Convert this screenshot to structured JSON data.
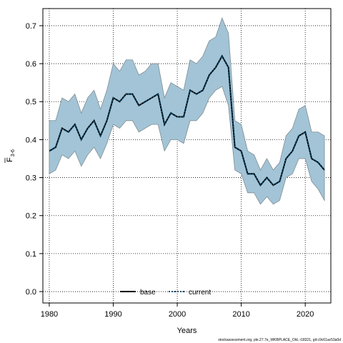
{
  "chart_data": {
    "type": "area",
    "xlabel": "Years",
    "ylabel_main": "F",
    "ylabel_sub": "3-6",
    "xlim": [
      1979,
      2024
    ],
    "ylim": [
      -0.03,
      0.745
    ],
    "xticks": [
      1980,
      1990,
      2000,
      2010,
      2020
    ],
    "yticks": [
      0.0,
      0.1,
      0.2,
      0.3,
      0.4,
      0.5,
      0.6,
      0.7
    ],
    "grid": true,
    "legend_position": "bottom-center",
    "x": [
      1980,
      1981,
      1982,
      1983,
      1984,
      1985,
      1986,
      1987,
      1988,
      1989,
      1990,
      1991,
      1992,
      1993,
      1994,
      1995,
      1996,
      1997,
      1998,
      1999,
      2000,
      2001,
      2002,
      2003,
      2004,
      2005,
      2006,
      2007,
      2008,
      2009,
      2010,
      2011,
      2012,
      2013,
      2014,
      2015,
      2016,
      2017,
      2018,
      2019,
      2020,
      2021,
      2022,
      2023
    ],
    "series": [
      {
        "name": "base",
        "color": "#000000",
        "values": [
          0.37,
          0.38,
          0.43,
          0.42,
          0.44,
          0.4,
          0.43,
          0.45,
          0.41,
          0.45,
          0.51,
          0.5,
          0.52,
          0.52,
          0.49,
          0.5,
          0.51,
          0.52,
          0.44,
          0.47,
          0.46,
          0.46,
          0.53,
          0.52,
          0.53,
          0.57,
          0.59,
          0.62,
          0.59,
          0.38,
          0.37,
          0.31,
          0.31,
          0.28,
          0.3,
          0.28,
          0.29,
          0.35,
          0.37,
          0.41,
          0.42,
          0.35,
          0.34,
          0.32
        ],
        "lower": [
          0.31,
          0.32,
          0.36,
          0.35,
          0.37,
          0.33,
          0.36,
          0.38,
          0.35,
          0.39,
          0.44,
          0.43,
          0.45,
          0.45,
          0.42,
          0.43,
          0.44,
          0.44,
          0.37,
          0.4,
          0.4,
          0.39,
          0.45,
          0.45,
          0.47,
          0.51,
          0.53,
          0.54,
          0.49,
          0.32,
          0.31,
          0.26,
          0.26,
          0.23,
          0.25,
          0.23,
          0.24,
          0.3,
          0.31,
          0.35,
          0.35,
          0.29,
          0.27,
          0.24
        ],
        "upper": [
          0.45,
          0.45,
          0.51,
          0.5,
          0.52,
          0.47,
          0.51,
          0.53,
          0.48,
          0.53,
          0.6,
          0.58,
          0.61,
          0.61,
          0.57,
          0.58,
          0.6,
          0.6,
          0.51,
          0.55,
          0.54,
          0.53,
          0.61,
          0.6,
          0.62,
          0.66,
          0.67,
          0.72,
          0.68,
          0.45,
          0.44,
          0.37,
          0.36,
          0.32,
          0.35,
          0.32,
          0.34,
          0.41,
          0.43,
          0.48,
          0.49,
          0.42,
          0.42,
          0.41
        ]
      },
      {
        "name": "current",
        "color": "#0d4a6b",
        "values": [
          0.37,
          0.38,
          0.43,
          0.42,
          0.44,
          0.4,
          0.43,
          0.45,
          0.41,
          0.45,
          0.51,
          0.5,
          0.52,
          0.52,
          0.49,
          0.5,
          0.51,
          0.52,
          0.44,
          0.47,
          0.46,
          0.46,
          0.53,
          0.52,
          0.53,
          0.57,
          0.59,
          0.62,
          0.59,
          0.38,
          0.37,
          0.31,
          0.31,
          0.28,
          0.3,
          0.28,
          0.29,
          0.35,
          0.37,
          0.41,
          0.42,
          0.35,
          0.34,
          0.32
        ]
      }
    ],
    "band_color": "#a2c4d6",
    "band_edge_color": "#7f8c93"
  },
  "footer": "stockassessment.org, ple.27.7e_WKBPLACE_Old, r18321, git:c9c61ac53a0d"
}
